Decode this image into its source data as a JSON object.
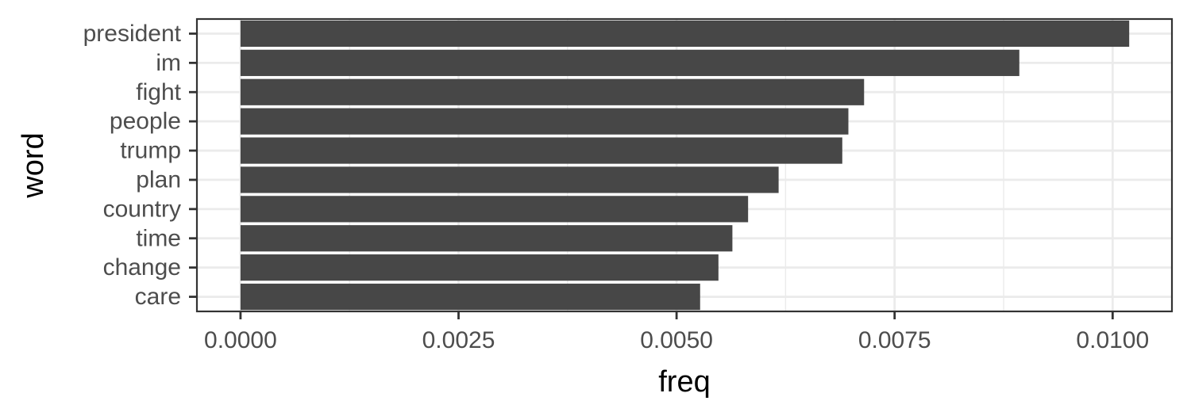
{
  "chart_data": {
    "type": "bar",
    "orientation": "horizontal",
    "categories": [
      "president",
      "im",
      "fight",
      "people",
      "trump",
      "plan",
      "country",
      "time",
      "change",
      "care"
    ],
    "values": [
      0.01019,
      0.00893,
      0.00715,
      0.00697,
      0.0069,
      0.00617,
      0.00582,
      0.00564,
      0.00548,
      0.00527
    ],
    "xlabel": "freq",
    "ylabel": "word",
    "xlim": [
      -0.0005,
      0.01068
    ],
    "x_ticks": [
      0,
      0.0025,
      0.005,
      0.0075,
      0.01
    ],
    "x_tick_labels": [
      "0.0000",
      "0.0025",
      "0.0050",
      "0.0075",
      "0.0100"
    ],
    "grid": true,
    "colors": {
      "bar": "#474747",
      "grid": "#ebebeb",
      "panel_border": "#333333"
    }
  }
}
